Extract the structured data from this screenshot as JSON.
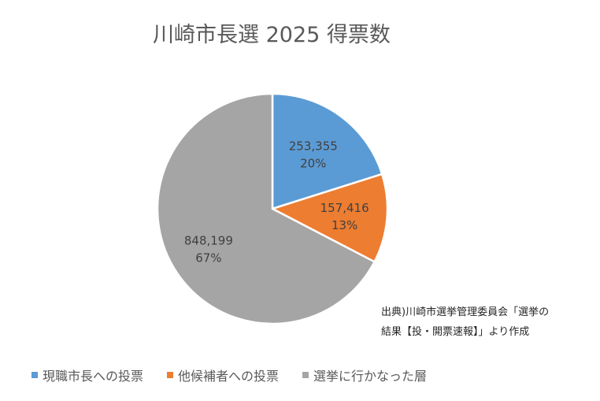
{
  "chart_data": {
    "type": "pie",
    "title": "川崎市長選 2025 得票数",
    "categories": [
      "現職市長への投票",
      "他候補者への投票",
      "選挙に行かなった層"
    ],
    "values": [
      253355,
      157416,
      848199
    ],
    "value_labels": [
      "253,355",
      "157,416",
      "848,199"
    ],
    "percent_labels": [
      "20%",
      "13%",
      "67%"
    ],
    "colors": [
      "#5B9BD5",
      "#ED7D31",
      "#A5A5A5"
    ],
    "legend_position": "bottom"
  },
  "source_note": {
    "line1": "出典)川崎市選挙管理委員会「選挙の",
    "line2": "結果【投・開票速報】」より作成"
  }
}
